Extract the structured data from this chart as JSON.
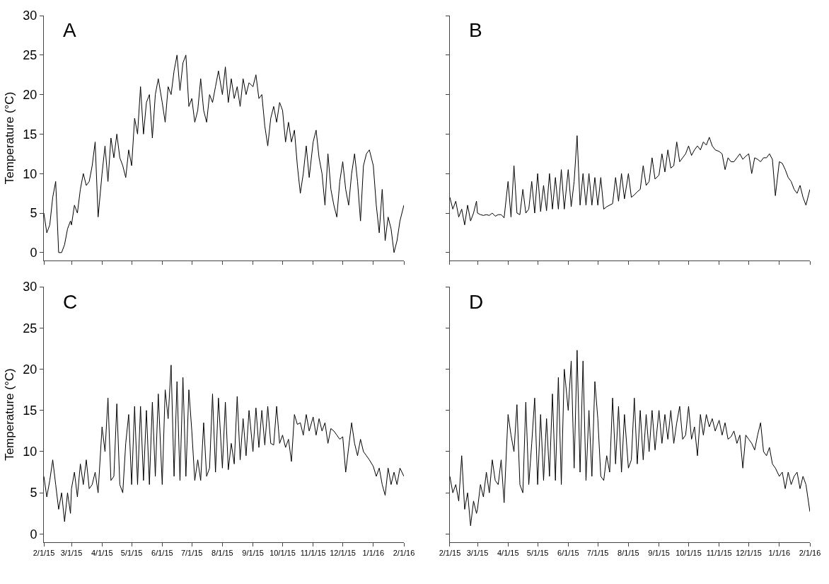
{
  "chart_data": [
    {
      "type": "line",
      "annotations": [
        "A"
      ],
      "ylabel": "Temperature (°C)",
      "tick_labels": "y",
      "grid": false,
      "marker": "none",
      "line_style": "solid",
      "xlim": [
        "2015-02-01",
        "2016-02-01"
      ],
      "ylim": [
        -1,
        30
      ],
      "yticks": [
        0,
        5,
        10,
        15,
        20,
        25,
        30
      ],
      "xticks": [
        {
          "value": "2015-02-01",
          "label": null
        },
        {
          "value": "2015-03-01",
          "label": null
        },
        {
          "value": "2015-04-01",
          "label": null
        },
        {
          "value": "2015-05-01",
          "label": null
        },
        {
          "value": "2015-06-01",
          "label": null
        },
        {
          "value": "2015-07-01",
          "label": null
        },
        {
          "value": "2015-08-01",
          "label": null
        },
        {
          "value": "2015-09-01",
          "label": null
        },
        {
          "value": "2015-10-01",
          "label": null
        },
        {
          "value": "2015-11-01",
          "label": null
        },
        {
          "value": "2015-12-01",
          "label": null
        },
        {
          "value": "2016-01-01",
          "label": null
        },
        {
          "value": "2016-02-01",
          "label": null
        }
      ],
      "x": [
        "2015-02-01",
        "2015-02-04",
        "2015-02-07",
        "2015-02-10",
        "2015-02-13",
        "2015-02-16",
        "2015-02-19",
        "2015-02-22",
        "2015-02-25",
        "2015-02-28",
        "2015-03-01",
        "2015-03-04",
        "2015-03-07",
        "2015-03-10",
        "2015-03-13",
        "2015-03-16",
        "2015-03-19",
        "2015-03-22",
        "2015-03-25",
        "2015-03-28",
        "2015-04-01",
        "2015-04-04",
        "2015-04-07",
        "2015-04-10",
        "2015-04-13",
        "2015-04-16",
        "2015-04-19",
        "2015-04-22",
        "2015-04-25",
        "2015-04-28",
        "2015-05-01",
        "2015-05-04",
        "2015-05-07",
        "2015-05-10",
        "2015-05-13",
        "2015-05-16",
        "2015-05-19",
        "2015-05-22",
        "2015-05-25",
        "2015-05-28",
        "2015-06-01",
        "2015-06-04",
        "2015-06-07",
        "2015-06-10",
        "2015-06-13",
        "2015-06-16",
        "2015-06-19",
        "2015-06-22",
        "2015-06-25",
        "2015-06-28",
        "2015-07-01",
        "2015-07-04",
        "2015-07-07",
        "2015-07-10",
        "2015-07-13",
        "2015-07-16",
        "2015-07-19",
        "2015-07-22",
        "2015-07-25",
        "2015-07-28",
        "2015-08-01",
        "2015-08-04",
        "2015-08-07",
        "2015-08-10",
        "2015-08-13",
        "2015-08-16",
        "2015-08-19",
        "2015-08-22",
        "2015-08-25",
        "2015-08-28",
        "2015-09-01",
        "2015-09-04",
        "2015-09-07",
        "2015-09-10",
        "2015-09-13",
        "2015-09-16",
        "2015-09-19",
        "2015-09-22",
        "2015-09-25",
        "2015-09-28",
        "2015-10-01",
        "2015-10-04",
        "2015-10-07",
        "2015-10-10",
        "2015-10-13",
        "2015-10-16",
        "2015-10-19",
        "2015-10-22",
        "2015-10-25",
        "2015-10-28",
        "2015-11-01",
        "2015-11-04",
        "2015-11-07",
        "2015-11-10",
        "2015-11-13",
        "2015-11-16",
        "2015-11-19",
        "2015-11-22",
        "2015-11-25",
        "2015-11-28",
        "2015-12-01",
        "2015-12-04",
        "2015-12-07",
        "2015-12-10",
        "2015-12-13",
        "2015-12-16",
        "2015-12-19",
        "2015-12-22",
        "2015-12-25",
        "2015-12-28",
        "2016-01-01",
        "2016-01-04",
        "2016-01-07",
        "2016-01-10",
        "2016-01-13",
        "2016-01-16",
        "2016-01-19",
        "2016-01-22",
        "2016-01-25",
        "2016-01-28",
        "2016-02-01"
      ],
      "series": [
        {
          "color": "#000000",
          "values": [
            5,
            2.5,
            3.5,
            7,
            9,
            0,
            0,
            1,
            3,
            4,
            3.5,
            6,
            5,
            8,
            10,
            8.5,
            9,
            11,
            14,
            4.5,
            10,
            13.5,
            9,
            14.5,
            12,
            15,
            12,
            11,
            9.5,
            13,
            11,
            17,
            15,
            21,
            15,
            19,
            20,
            14.5,
            20,
            22,
            19,
            16.5,
            21,
            20,
            23,
            25,
            20.5,
            24,
            25,
            18.5,
            19.5,
            16.5,
            18,
            22,
            18,
            16.5,
            20,
            19,
            21,
            23,
            20,
            23.5,
            19,
            22,
            19.5,
            21,
            18.5,
            22,
            20,
            21.5,
            21,
            22.5,
            19.5,
            20,
            16,
            13.5,
            17,
            18.5,
            16.5,
            19,
            18,
            14,
            16.5,
            14,
            15.5,
            11,
            7.5,
            10,
            13.5,
            9.5,
            14,
            15.5,
            12,
            10,
            6,
            12.5,
            8,
            6,
            4.5,
            9,
            11.5,
            8,
            6,
            10,
            12.5,
            9,
            4,
            11,
            12.5,
            13,
            11,
            6,
            2.5,
            8,
            1.5,
            4.5,
            3,
            0,
            1.5,
            4,
            6
          ]
        }
      ]
    },
    {
      "type": "line",
      "annotations": [
        "B"
      ],
      "tick_labels": false,
      "grid": false,
      "marker": "none",
      "line_style": "solid",
      "xlim": [
        "2015-02-01",
        "2016-02-01"
      ],
      "ylim": [
        -1,
        30
      ],
      "yticks": [
        0,
        5,
        10,
        15,
        20,
        25,
        30
      ],
      "xticks": [
        {
          "value": "2015-02-01",
          "label": null
        },
        {
          "value": "2015-03-01",
          "label": null
        },
        {
          "value": "2015-04-01",
          "label": null
        },
        {
          "value": "2015-05-01",
          "label": null
        },
        {
          "value": "2015-06-01",
          "label": null
        },
        {
          "value": "2015-07-01",
          "label": null
        },
        {
          "value": "2015-08-01",
          "label": null
        },
        {
          "value": "2015-09-01",
          "label": null
        },
        {
          "value": "2015-10-01",
          "label": null
        },
        {
          "value": "2015-11-01",
          "label": null
        },
        {
          "value": "2015-12-01",
          "label": null
        },
        {
          "value": "2016-01-01",
          "label": null
        },
        {
          "value": "2016-02-01",
          "label": null
        }
      ],
      "x": [
        "2015-02-01",
        "2015-02-04",
        "2015-02-07",
        "2015-02-10",
        "2015-02-13",
        "2015-02-16",
        "2015-02-19",
        "2015-02-22",
        "2015-02-25",
        "2015-02-28",
        "2015-03-01",
        "2015-03-04",
        "2015-03-07",
        "2015-03-10",
        "2015-03-13",
        "2015-03-16",
        "2015-03-19",
        "2015-03-22",
        "2015-03-25",
        "2015-03-28",
        "2015-04-01",
        "2015-04-04",
        "2015-04-07",
        "2015-04-10",
        "2015-04-13",
        "2015-04-16",
        "2015-04-19",
        "2015-04-22",
        "2015-04-25",
        "2015-04-28",
        "2015-05-01",
        "2015-05-04",
        "2015-05-07",
        "2015-05-10",
        "2015-05-13",
        "2015-05-16",
        "2015-05-19",
        "2015-05-22",
        "2015-05-25",
        "2015-05-28",
        "2015-06-01",
        "2015-06-04",
        "2015-06-07",
        "2015-06-10",
        "2015-06-13",
        "2015-06-16",
        "2015-06-19",
        "2015-06-22",
        "2015-06-25",
        "2015-06-28",
        "2015-07-01",
        "2015-07-04",
        "2015-07-07",
        "2015-07-10",
        "2015-07-13",
        "2015-07-16",
        "2015-07-19",
        "2015-07-22",
        "2015-07-25",
        "2015-07-28",
        "2015-08-01",
        "2015-08-04",
        "2015-08-07",
        "2015-08-10",
        "2015-08-13",
        "2015-08-16",
        "2015-08-19",
        "2015-08-22",
        "2015-08-25",
        "2015-08-28",
        "2015-09-01",
        "2015-09-04",
        "2015-09-07",
        "2015-09-10",
        "2015-09-13",
        "2015-09-16",
        "2015-09-19",
        "2015-09-22",
        "2015-09-25",
        "2015-09-28",
        "2015-10-01",
        "2015-10-04",
        "2015-10-07",
        "2015-10-10",
        "2015-10-13",
        "2015-10-16",
        "2015-10-19",
        "2015-10-22",
        "2015-10-25",
        "2015-10-28",
        "2015-11-01",
        "2015-11-04",
        "2015-11-07",
        "2015-11-10",
        "2015-11-13",
        "2015-11-16",
        "2015-11-19",
        "2015-11-22",
        "2015-11-25",
        "2015-11-28",
        "2015-12-01",
        "2015-12-04",
        "2015-12-07",
        "2015-12-10",
        "2015-12-13",
        "2015-12-16",
        "2015-12-19",
        "2015-12-22",
        "2015-12-25",
        "2015-12-28",
        "2016-01-01",
        "2016-01-04",
        "2016-01-07",
        "2016-01-10",
        "2016-01-13",
        "2016-01-16",
        "2016-01-19",
        "2016-01-22",
        "2016-01-25",
        "2016-01-28",
        "2016-02-01"
      ],
      "series": [
        {
          "color": "#000000",
          "values": [
            7,
            5.5,
            6.5,
            4.5,
            5.5,
            3.5,
            6,
            4,
            5,
            6.5,
            5,
            4.8,
            4.7,
            4.8,
            4.7,
            5,
            4.6,
            4.8,
            4.8,
            4.4,
            9,
            4.5,
            11,
            5,
            4.8,
            8,
            5,
            5.5,
            9,
            5,
            10,
            5.2,
            8.5,
            5.3,
            10,
            5.5,
            9.5,
            5.5,
            10.5,
            5.5,
            10.5,
            5.8,
            9,
            14.8,
            6,
            10,
            6,
            10,
            6,
            9.5,
            6,
            9.5,
            5.5,
            5.8,
            6,
            6.2,
            9.5,
            6.5,
            10,
            6.8,
            10,
            7,
            7.3,
            7.7,
            8,
            11,
            8.5,
            9,
            12,
            9.3,
            9.8,
            12.5,
            10.2,
            13,
            10.7,
            11,
            14,
            11.5,
            12,
            12.5,
            13.5,
            12.3,
            13,
            13.5,
            13,
            14,
            13.6,
            14.6,
            13.5,
            13,
            12.8,
            12.5,
            10.5,
            12,
            11.5,
            11.5,
            12,
            12.5,
            11.8,
            12.2,
            12.5,
            10,
            12,
            11.8,
            11.5,
            12,
            12,
            12.5,
            11.8,
            7.2,
            11.5,
            11.3,
            10.5,
            9.5,
            9,
            8,
            7.5,
            8.5,
            7,
            6,
            8
          ]
        }
      ]
    },
    {
      "type": "line",
      "annotations": [
        "C"
      ],
      "ylabel": "Temperature (°C)",
      "grid": false,
      "marker": "none",
      "line_style": "solid",
      "xlim": [
        "2015-02-01",
        "2016-02-01"
      ],
      "ylim": [
        -1,
        30
      ],
      "yticks": [
        0,
        5,
        10,
        15,
        20,
        25,
        30
      ],
      "xticks": [
        {
          "value": "2015-02-01",
          "label": "2/1/15"
        },
        {
          "value": "2015-03-01",
          "label": "3/1/15"
        },
        {
          "value": "2015-04-01",
          "label": "4/1/15"
        },
        {
          "value": "2015-05-01",
          "label": "5/1/15"
        },
        {
          "value": "2015-06-01",
          "label": "6/1/15"
        },
        {
          "value": "2015-07-01",
          "label": "7/1/15"
        },
        {
          "value": "2015-08-01",
          "label": "8/1/15"
        },
        {
          "value": "2015-09-01",
          "label": "9/1/15"
        },
        {
          "value": "2015-10-01",
          "label": "10/1/15"
        },
        {
          "value": "2015-11-01",
          "label": "11/1/15"
        },
        {
          "value": "2015-12-01",
          "label": "12/1/15"
        },
        {
          "value": "2016-01-01",
          "label": "1/1/16"
        },
        {
          "value": "2016-02-01",
          "label": "2/1/16"
        }
      ],
      "x": [
        "2015-02-01",
        "2015-02-04",
        "2015-02-07",
        "2015-02-10",
        "2015-02-13",
        "2015-02-16",
        "2015-02-19",
        "2015-02-22",
        "2015-02-25",
        "2015-02-28",
        "2015-03-01",
        "2015-03-04",
        "2015-03-07",
        "2015-03-10",
        "2015-03-13",
        "2015-03-16",
        "2015-03-19",
        "2015-03-22",
        "2015-03-25",
        "2015-03-28",
        "2015-04-01",
        "2015-04-04",
        "2015-04-07",
        "2015-04-10",
        "2015-04-13",
        "2015-04-16",
        "2015-04-19",
        "2015-04-22",
        "2015-04-25",
        "2015-04-28",
        "2015-05-01",
        "2015-05-04",
        "2015-05-07",
        "2015-05-10",
        "2015-05-13",
        "2015-05-16",
        "2015-05-19",
        "2015-05-22",
        "2015-05-25",
        "2015-05-28",
        "2015-06-01",
        "2015-06-04",
        "2015-06-07",
        "2015-06-10",
        "2015-06-13",
        "2015-06-16",
        "2015-06-19",
        "2015-06-22",
        "2015-06-25",
        "2015-06-28",
        "2015-07-01",
        "2015-07-04",
        "2015-07-07",
        "2015-07-10",
        "2015-07-13",
        "2015-07-16",
        "2015-07-19",
        "2015-07-22",
        "2015-07-25",
        "2015-07-28",
        "2015-08-01",
        "2015-08-04",
        "2015-08-07",
        "2015-08-10",
        "2015-08-13",
        "2015-08-16",
        "2015-08-19",
        "2015-08-22",
        "2015-08-25",
        "2015-08-28",
        "2015-09-01",
        "2015-09-04",
        "2015-09-07",
        "2015-09-10",
        "2015-09-13",
        "2015-09-16",
        "2015-09-19",
        "2015-09-22",
        "2015-09-25",
        "2015-09-28",
        "2015-10-01",
        "2015-10-04",
        "2015-10-07",
        "2015-10-10",
        "2015-10-13",
        "2015-10-16",
        "2015-10-19",
        "2015-10-22",
        "2015-10-25",
        "2015-10-28",
        "2015-11-01",
        "2015-11-04",
        "2015-11-07",
        "2015-11-10",
        "2015-11-13",
        "2015-11-16",
        "2015-11-19",
        "2015-11-22",
        "2015-11-25",
        "2015-11-28",
        "2015-12-01",
        "2015-12-04",
        "2015-12-07",
        "2015-12-10",
        "2015-12-13",
        "2015-12-16",
        "2015-12-19",
        "2015-12-22",
        "2015-12-25",
        "2015-12-28",
        "2016-01-01",
        "2016-01-04",
        "2016-01-07",
        "2016-01-10",
        "2016-01-13",
        "2016-01-16",
        "2016-01-19",
        "2016-01-22",
        "2016-01-25",
        "2016-01-28",
        "2016-02-01"
      ],
      "series": [
        {
          "color": "#000000",
          "values": [
            7,
            4.5,
            6.5,
            9,
            6,
            3,
            5,
            1.5,
            5,
            2.5,
            5.5,
            7.5,
            4.5,
            8.5,
            6,
            9,
            5.5,
            6,
            7.5,
            5,
            13,
            10,
            16.5,
            6.5,
            7,
            15.8,
            6,
            5,
            11,
            14.5,
            6,
            15.5,
            6,
            15.5,
            6.5,
            15,
            6,
            16,
            7,
            17,
            6,
            17.5,
            14,
            20.5,
            7,
            18.5,
            6.5,
            19,
            7,
            17.5,
            12.5,
            6.5,
            9,
            6.5,
            13.5,
            7,
            8,
            17,
            7.5,
            16.5,
            8,
            16,
            7.8,
            11,
            8.5,
            16.7,
            9,
            14,
            9.5,
            15,
            10,
            15.3,
            10.5,
            15,
            10.8,
            15.5,
            11,
            10.8,
            15.5,
            11,
            12,
            10.5,
            11.5,
            8.8,
            14.5,
            13.3,
            13.5,
            12,
            14.5,
            12.5,
            14.2,
            12,
            14,
            12.5,
            13.5,
            11,
            12.8,
            12.5,
            12,
            11.5,
            11.8,
            7.5,
            10.5,
            13.5,
            11,
            9.5,
            11.5,
            10,
            9.5,
            9,
            8.2,
            7,
            8,
            6,
            4.7,
            8,
            6,
            7.5,
            6,
            8,
            7
          ]
        }
      ]
    },
    {
      "type": "line",
      "annotations": [
        "D"
      ],
      "tick_labels": "x",
      "grid": false,
      "marker": "none",
      "line_style": "solid",
      "xlim": [
        "2015-02-01",
        "2016-02-01"
      ],
      "ylim": [
        -1,
        30
      ],
      "yticks": [
        0,
        5,
        10,
        15,
        20,
        25,
        30
      ],
      "xticks": [
        {
          "value": "2015-02-01",
          "label": "2/1/15"
        },
        {
          "value": "2015-03-01",
          "label": "3/1/15"
        },
        {
          "value": "2015-04-01",
          "label": "4/1/15"
        },
        {
          "value": "2015-05-01",
          "label": "5/1/15"
        },
        {
          "value": "2015-06-01",
          "label": "6/1/15"
        },
        {
          "value": "2015-07-01",
          "label": "7/1/15"
        },
        {
          "value": "2015-08-01",
          "label": "8/1/15"
        },
        {
          "value": "2015-09-01",
          "label": "9/1/15"
        },
        {
          "value": "2015-10-01",
          "label": "10/1/15"
        },
        {
          "value": "2015-11-01",
          "label": "11/1/15"
        },
        {
          "value": "2015-12-01",
          "label": "12/1/15"
        },
        {
          "value": "2016-01-01",
          "label": "1/1/16"
        },
        {
          "value": "2016-02-01",
          "label": "2/1/16"
        }
      ],
      "x": [
        "2015-02-01",
        "2015-02-04",
        "2015-02-07",
        "2015-02-10",
        "2015-02-13",
        "2015-02-16",
        "2015-02-19",
        "2015-02-22",
        "2015-02-25",
        "2015-02-28",
        "2015-03-01",
        "2015-03-04",
        "2015-03-07",
        "2015-03-10",
        "2015-03-13",
        "2015-03-16",
        "2015-03-19",
        "2015-03-22",
        "2015-03-25",
        "2015-03-28",
        "2015-04-01",
        "2015-04-04",
        "2015-04-07",
        "2015-04-10",
        "2015-04-13",
        "2015-04-16",
        "2015-04-19",
        "2015-04-22",
        "2015-04-25",
        "2015-04-28",
        "2015-05-01",
        "2015-05-04",
        "2015-05-07",
        "2015-05-10",
        "2015-05-13",
        "2015-05-16",
        "2015-05-19",
        "2015-05-22",
        "2015-05-25",
        "2015-05-28",
        "2015-06-01",
        "2015-06-04",
        "2015-06-07",
        "2015-06-10",
        "2015-06-13",
        "2015-06-16",
        "2015-06-19",
        "2015-06-22",
        "2015-06-25",
        "2015-06-28",
        "2015-07-01",
        "2015-07-04",
        "2015-07-07",
        "2015-07-10",
        "2015-07-13",
        "2015-07-16",
        "2015-07-19",
        "2015-07-22",
        "2015-07-25",
        "2015-07-28",
        "2015-08-01",
        "2015-08-04",
        "2015-08-07",
        "2015-08-10",
        "2015-08-13",
        "2015-08-16",
        "2015-08-19",
        "2015-08-22",
        "2015-08-25",
        "2015-08-28",
        "2015-09-01",
        "2015-09-04",
        "2015-09-07",
        "2015-09-10",
        "2015-09-13",
        "2015-09-16",
        "2015-09-19",
        "2015-09-22",
        "2015-09-25",
        "2015-09-28",
        "2015-10-01",
        "2015-10-04",
        "2015-10-07",
        "2015-10-10",
        "2015-10-13",
        "2015-10-16",
        "2015-10-19",
        "2015-10-22",
        "2015-10-25",
        "2015-10-28",
        "2015-11-01",
        "2015-11-04",
        "2015-11-07",
        "2015-11-10",
        "2015-11-13",
        "2015-11-16",
        "2015-11-19",
        "2015-11-22",
        "2015-11-25",
        "2015-11-28",
        "2015-12-01",
        "2015-12-04",
        "2015-12-07",
        "2015-12-10",
        "2015-12-13",
        "2015-12-16",
        "2015-12-19",
        "2015-12-22",
        "2015-12-25",
        "2015-12-28",
        "2016-01-01",
        "2016-01-04",
        "2016-01-07",
        "2016-01-10",
        "2016-01-13",
        "2016-01-16",
        "2016-01-19",
        "2016-01-22",
        "2016-01-25",
        "2016-01-28",
        "2016-02-01"
      ],
      "series": [
        {
          "color": "#000000",
          "values": [
            7,
            5,
            6,
            4,
            9.5,
            3,
            5,
            1,
            4,
            2.5,
            3,
            6,
            4.5,
            7.5,
            5,
            9,
            6.5,
            6,
            9,
            3.8,
            14.5,
            12,
            10,
            15.7,
            6,
            5,
            16,
            6,
            11,
            16.5,
            6,
            14.5,
            6.5,
            14,
            7,
            17,
            6.5,
            19,
            6,
            20,
            15,
            21,
            8,
            22.3,
            7.5,
            21,
            6.5,
            15,
            7,
            18.5,
            14,
            7,
            6.5,
            9.5,
            7.5,
            16.5,
            8.5,
            15.5,
            7.5,
            14.5,
            8,
            9,
            16.5,
            8.5,
            15,
            9,
            14.5,
            10,
            15,
            10.2,
            15,
            11,
            14.5,
            11.5,
            15,
            11,
            13.5,
            15.5,
            11.5,
            12,
            15.5,
            11.5,
            13,
            9.5,
            14.5,
            12,
            14.5,
            13,
            14,
            12.5,
            13.8,
            12,
            13.5,
            11.5,
            11.8,
            12.5,
            11,
            12,
            8,
            12,
            11.5,
            11,
            10.2,
            12,
            13.5,
            10,
            9.5,
            10.5,
            8.5,
            8,
            7,
            7.5,
            5.5,
            7.5,
            6,
            7,
            7.5,
            5.5,
            7,
            6,
            2.7
          ]
        }
      ]
    }
  ]
}
